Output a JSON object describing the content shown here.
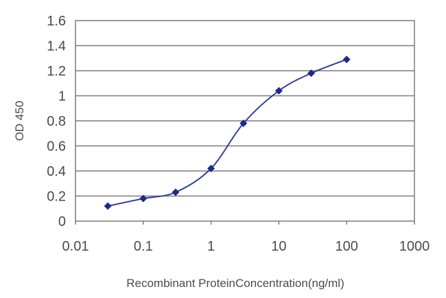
{
  "chart_data": {
    "type": "line",
    "x": [
      0.03,
      0.1,
      0.3,
      1,
      3,
      10,
      30,
      100
    ],
    "series": [
      {
        "values": [
          0.12,
          0.18,
          0.23,
          0.42,
          0.78,
          1.04,
          1.18,
          1.29
        ]
      }
    ],
    "xscale": "log",
    "xlim": [
      0.01,
      1000
    ],
    "ylim": [
      0,
      1.6
    ],
    "x_ticks": [
      "0.01",
      "0.1",
      "1",
      "10",
      "100",
      "1000"
    ],
    "y_ticks": [
      "0",
      "0.2",
      "0.4",
      "0.6",
      "0.8",
      "1",
      "1.2",
      "1.4",
      "1.6"
    ],
    "xlabel": "Recombinant ProteinConcentration(ng/ml)",
    "ylabel": "OD 450",
    "grid": "horizontal",
    "colors": {
      "line": "#2f3d9c",
      "marker": "#1d2a8a",
      "grid": "#7a7a7a",
      "frame": "#7a7a7a",
      "text": "#4a4a4a"
    }
  }
}
